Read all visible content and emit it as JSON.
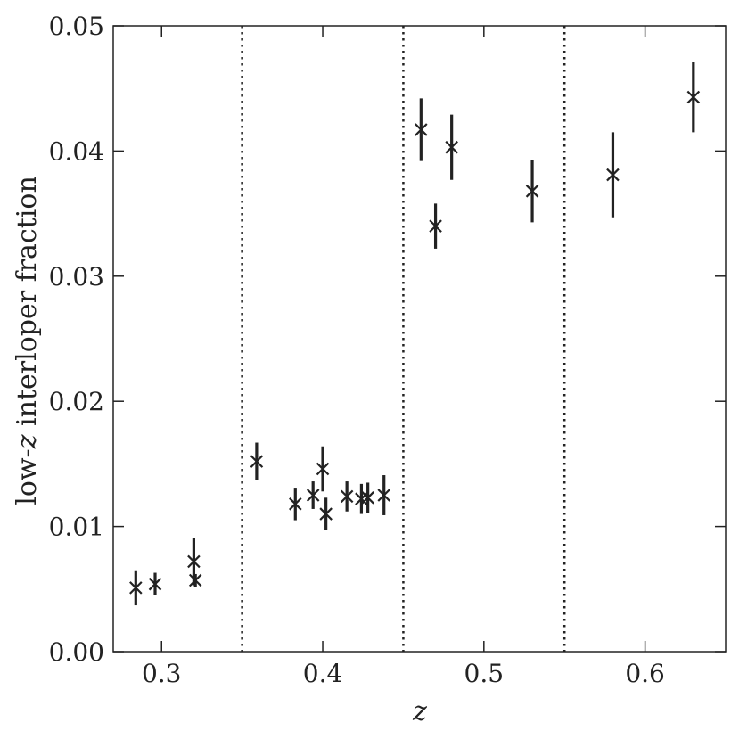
{
  "chart_data": {
    "type": "scatter",
    "title": "",
    "xlabel": "z",
    "ylabel_parts": {
      "prefix": "low-",
      "italic": "z",
      "suffix": " interloper fraction"
    },
    "xlim": [
      0.27,
      0.65
    ],
    "ylim": [
      0.0,
      0.05
    ],
    "xticks": [
      0.3,
      0.4,
      0.5,
      0.6
    ],
    "xtick_labels": [
      "0.3",
      "0.4",
      "0.5",
      "0.6"
    ],
    "yticks": [
      0.0,
      0.01,
      0.02,
      0.03,
      0.04,
      0.05
    ],
    "ytick_labels": [
      "0.00",
      "0.01",
      "0.02",
      "0.03",
      "0.04",
      "0.05"
    ],
    "vlines": [
      0.35,
      0.45,
      0.55
    ],
    "grid": false,
    "marker": "x",
    "color": "#222222",
    "series": [
      {
        "points": [
          {
            "x": 0.284,
            "y": 0.0051,
            "err": 0.0014
          },
          {
            "x": 0.296,
            "y": 0.0054,
            "err": 0.0009
          },
          {
            "x": 0.32,
            "y": 0.0072,
            "err": 0.0019
          },
          {
            "x": 0.321,
            "y": 0.0057,
            "err": 0.0005
          },
          {
            "x": 0.359,
            "y": 0.0152,
            "err": 0.0015
          },
          {
            "x": 0.383,
            "y": 0.0118,
            "err": 0.0013
          },
          {
            "x": 0.394,
            "y": 0.0125,
            "err": 0.0011
          },
          {
            "x": 0.4,
            "y": 0.0146,
            "err": 0.0018
          },
          {
            "x": 0.402,
            "y": 0.011,
            "err": 0.0013
          },
          {
            "x": 0.415,
            "y": 0.0124,
            "err": 0.0012
          },
          {
            "x": 0.424,
            "y": 0.0122,
            "err": 0.0012
          },
          {
            "x": 0.428,
            "y": 0.0123,
            "err": 0.0012
          },
          {
            "x": 0.438,
            "y": 0.0125,
            "err": 0.0016
          },
          {
            "x": 0.461,
            "y": 0.0417,
            "err": 0.0025
          },
          {
            "x": 0.47,
            "y": 0.034,
            "err": 0.0018
          },
          {
            "x": 0.48,
            "y": 0.0403,
            "err": 0.0026
          },
          {
            "x": 0.53,
            "y": 0.0368,
            "err": 0.0025
          },
          {
            "x": 0.58,
            "y": 0.0381,
            "err": 0.0034
          },
          {
            "x": 0.63,
            "y": 0.0443,
            "err": 0.0028
          }
        ]
      }
    ]
  }
}
